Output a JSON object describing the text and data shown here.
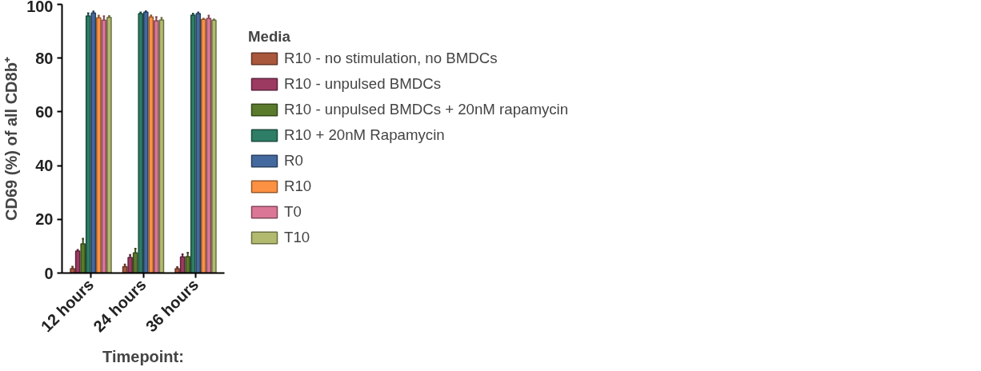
{
  "chart_data": {
    "type": "bar",
    "xlabel": "Timepoint:",
    "ylabel": "CD69 (%) of all CD8b⁺",
    "legend_title": "Media",
    "categories": [
      "12 hours",
      "24 hours",
      "36 hours"
    ],
    "series": [
      {
        "name": "R10 - no stimulation, no BMDCs",
        "color": "#a9573d",
        "values": [
          1.6,
          2.4,
          1.6
        ],
        "errors": [
          0.8,
          0.8,
          0.6
        ]
      },
      {
        "name": "R10 - unpulsed BMDCs",
        "color": "#9c3a62",
        "values": [
          8.2,
          5.8,
          6.0
        ],
        "errors": [
          0.4,
          1.0,
          1.0
        ]
      },
      {
        "name": "R10 - unpulsed BMDCs + 20nM rapamycin",
        "color": "#5a7a2c",
        "values": [
          10.9,
          7.5,
          6.1
        ],
        "errors": [
          1.9,
          1.6,
          1.5
        ]
      },
      {
        "name": "R10 + 20nM Rapamycin",
        "color": "#2e7d66",
        "values": [
          95.7,
          96.6,
          96.0
        ],
        "errors": [
          1.0,
          0.4,
          0.6
        ]
      },
      {
        "name": "R0",
        "color": "#44699e",
        "values": [
          96.8,
          97.1,
          96.6
        ],
        "errors": [
          0.6,
          0.4,
          0.4
        ]
      },
      {
        "name": "R10",
        "color": "#fd9143",
        "values": [
          95.0,
          95.3,
          94.4
        ],
        "errors": [
          0.8,
          0.6,
          0.3
        ]
      },
      {
        "name": "T0",
        "color": "#db7696",
        "values": [
          94.1,
          93.9,
          94.8
        ],
        "errors": [
          1.5,
          1.4,
          1.0
        ]
      },
      {
        "name": "T10",
        "color": "#b2ba6f",
        "values": [
          95.2,
          94.2,
          94.1
        ],
        "errors": [
          0.5,
          0.8,
          0.3
        ]
      }
    ],
    "ylim": [
      0,
      100
    ],
    "yticks": [
      0,
      20,
      40,
      60,
      80,
      100
    ],
    "grid": false,
    "legend": "right"
  }
}
